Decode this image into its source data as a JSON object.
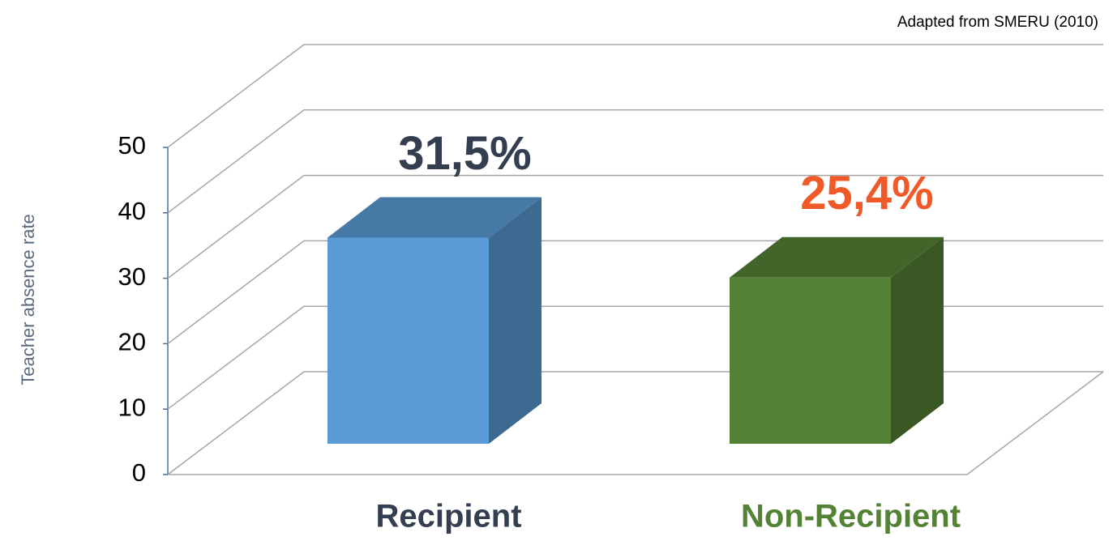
{
  "chart_data": {
    "type": "bar3d",
    "source": "Adapted from SMERU (2010)",
    "y_label": "Teacher absence rate",
    "categories": [
      "Recipient",
      "Non-Recipient"
    ],
    "values": [
      31.5,
      25.4
    ],
    "value_labels": [
      "31,5%",
      "25,4%"
    ],
    "colors": [
      "#5b9bd5",
      "#548235"
    ],
    "ylim": [
      0,
      50
    ],
    "yticks": [
      0,
      10,
      20,
      30,
      40,
      50
    ],
    "grid": true
  }
}
